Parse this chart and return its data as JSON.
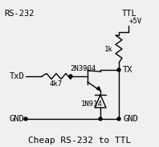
{
  "bg_color": "#f0f0f0",
  "line_color": "#000000",
  "title": "Cheap RS-232 to TTL",
  "label_rs232": "RS-232",
  "label_ttl": "TTL",
  "label_txd": "TxD",
  "label_gnd_left": "GND",
  "label_gnd_right": "GND",
  "label_vcc": "+5V",
  "label_tx": "TX",
  "label_r1": "1k",
  "label_r2": "4k7",
  "label_transistor": "2N3904",
  "label_diode": "1N914",
  "font_size_title": 8,
  "font_size_label": 7.5,
  "font_size_small": 6.5
}
